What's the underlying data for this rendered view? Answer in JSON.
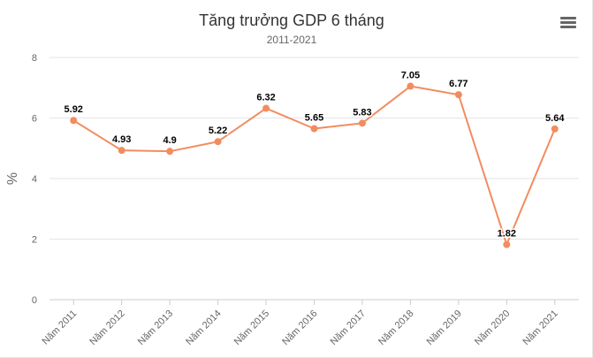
{
  "chart_data": {
    "type": "line",
    "title": "Tăng trưởng GDP 6 tháng",
    "subtitle": "2011-2021",
    "xlabel": "",
    "ylabel": "%",
    "categories": [
      "Năm 2011",
      "Năm 2012",
      "Năm 2013",
      "Năm 2014",
      "Năm 2015",
      "Năm 2016",
      "Năm 2017",
      "Năm 2018",
      "Năm 2019",
      "Năm 2020",
      "Năm 2021"
    ],
    "series": [
      {
        "values": [
          5.92,
          4.93,
          4.9,
          5.22,
          6.32,
          5.65,
          5.83,
          7.05,
          6.77,
          1.82,
          5.64
        ],
        "color": "#f28c5f"
      }
    ],
    "ylim": [
      0,
      8
    ],
    "yticks": [
      0,
      2,
      4,
      6,
      8
    ],
    "grid": true,
    "legend": "none"
  },
  "ui": {
    "menu_icon": "hamburger-menu-icon"
  }
}
